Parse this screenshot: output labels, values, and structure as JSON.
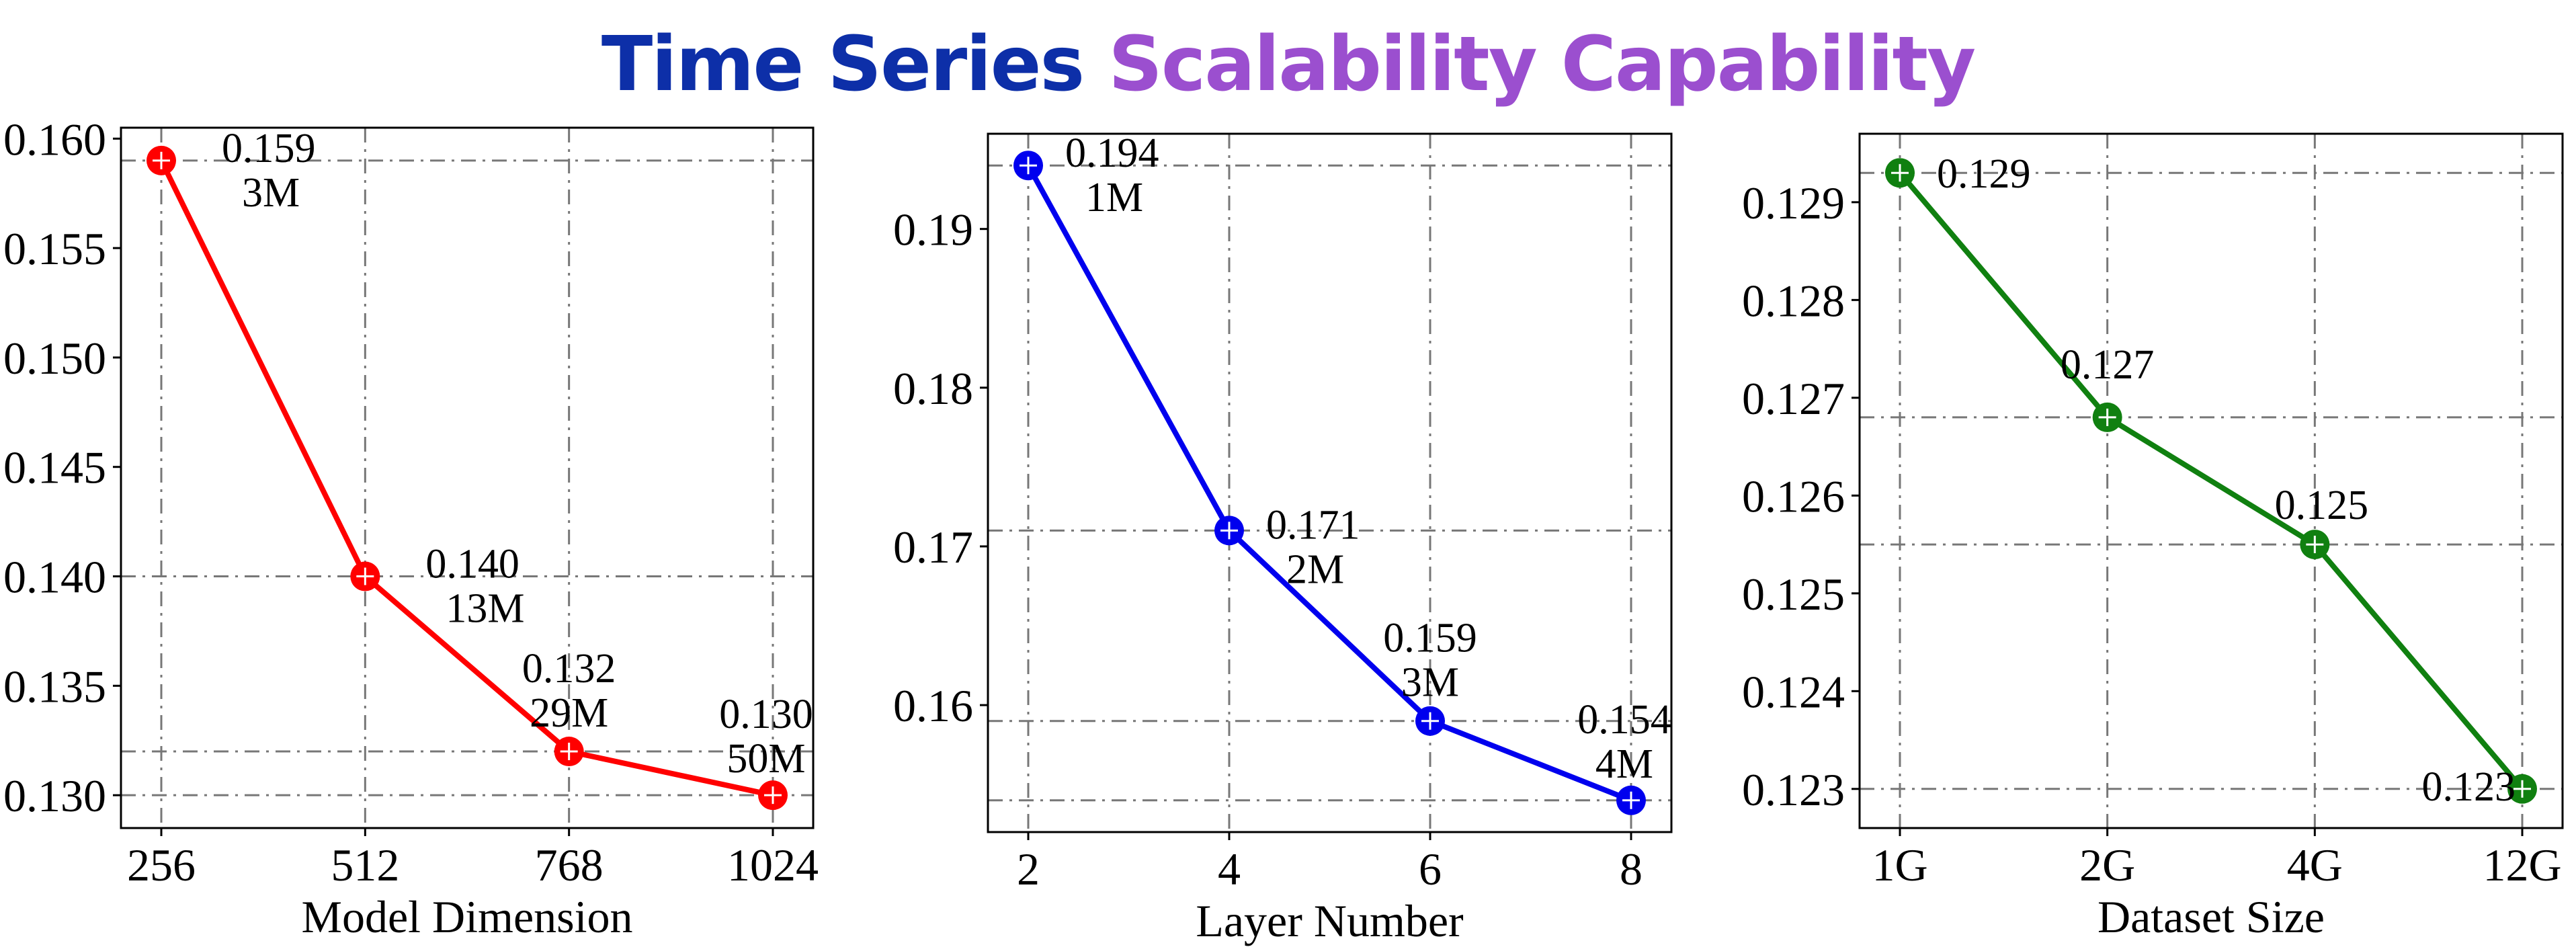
{
  "title": {
    "part1": "Time Series",
    "part2": "Scalability Capability"
  },
  "colors": {
    "title_part1": "#0d2fa8",
    "title_part2": "#9b4fcf"
  },
  "chart_data": [
    {
      "type": "line",
      "xlabel": "Model Dimension",
      "categories": [
        "256",
        "512",
        "768",
        "1024"
      ],
      "values": [
        0.159,
        0.14,
        0.132,
        0.13
      ],
      "point_labels": [
        "0.159",
        "0.140",
        "0.132",
        "0.130"
      ],
      "param_labels": [
        "3M",
        "13M",
        "29M",
        "50M"
      ],
      "ylim": [
        0.1285,
        0.1605
      ],
      "yticks": [
        "0.130",
        "0.135",
        "0.140",
        "0.145",
        "0.150",
        "0.155",
        "0.160"
      ],
      "grid": true,
      "color": "#ff0000"
    },
    {
      "type": "line",
      "xlabel": "Layer Number",
      "categories": [
        "2",
        "4",
        "6",
        "8"
      ],
      "values": [
        0.194,
        0.171,
        0.159,
        0.154
      ],
      "point_labels": [
        "0.194",
        "0.171",
        "0.159",
        "0.154"
      ],
      "param_labels": [
        "1M",
        "2M",
        "3M",
        "4M"
      ],
      "ylim": [
        0.152,
        0.196
      ],
      "yticks": [
        "0.16",
        "0.17",
        "0.18",
        "0.19"
      ],
      "grid": true,
      "color": "#0000ee"
    },
    {
      "type": "line",
      "xlabel": "Dataset Size",
      "categories": [
        "1G",
        "2G",
        "4G",
        "12G"
      ],
      "values": [
        0.1293,
        0.1268,
        0.1255,
        0.123
      ],
      "point_labels": [
        "0.129",
        "0.127",
        "0.125",
        "0.123"
      ],
      "param_labels": [],
      "ylim": [
        0.1226,
        0.1297
      ],
      "yticks": [
        "0.123",
        "0.124",
        "0.125",
        "0.126",
        "0.127",
        "0.128",
        "0.129"
      ],
      "grid": true,
      "color": "#108010"
    }
  ]
}
